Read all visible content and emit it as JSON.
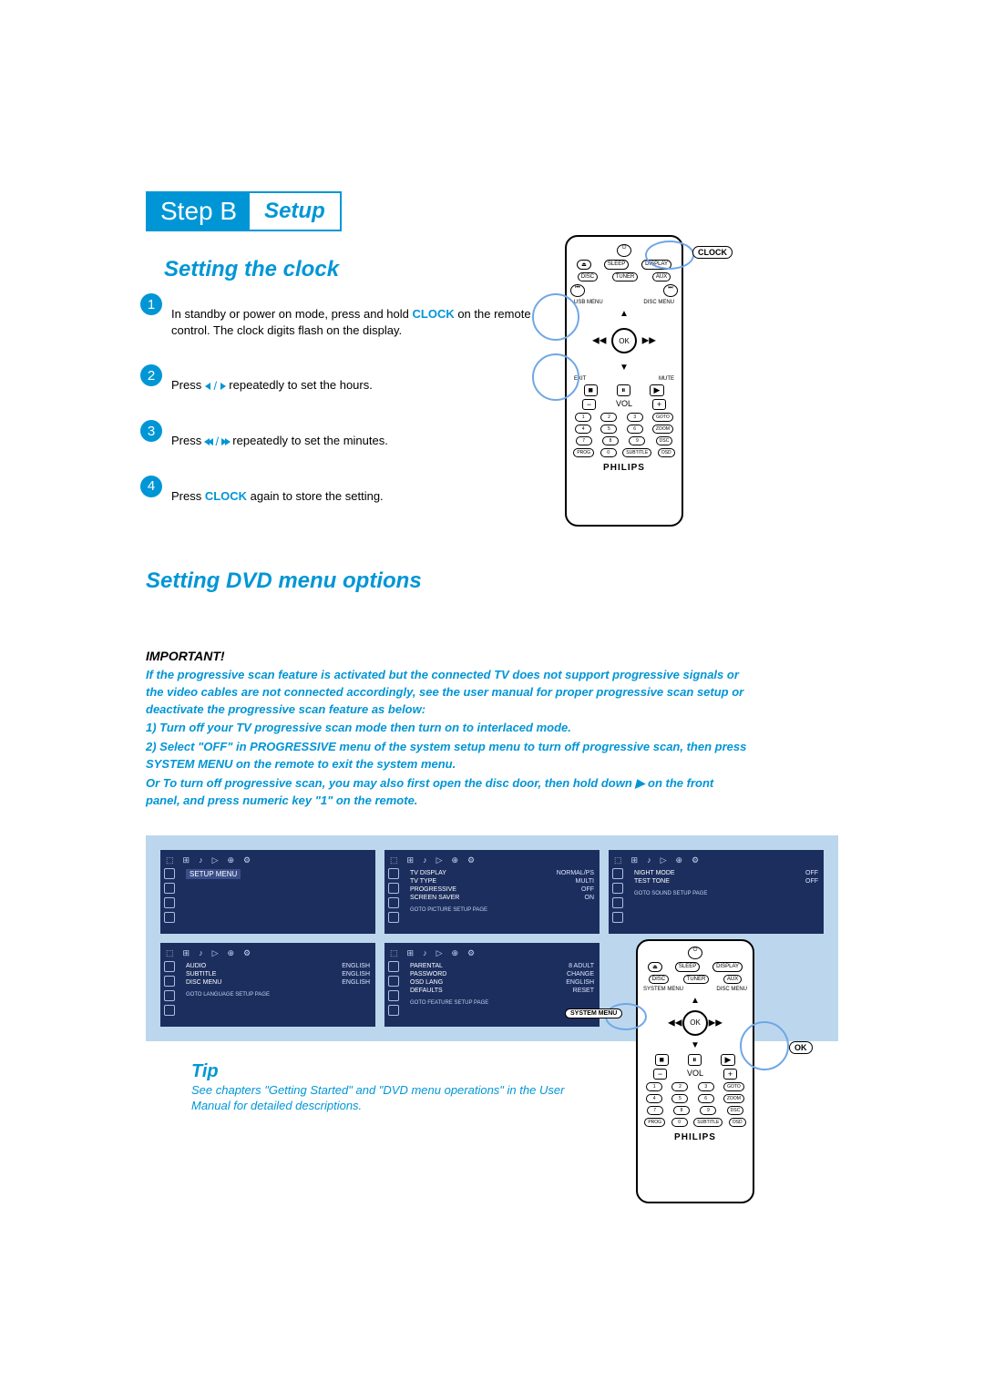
{
  "colors": {
    "accent": "#0095d6",
    "step_bg": "#0096d6",
    "circle_bg": "#0096d6",
    "panel_bg": "#bcd7ed",
    "menu_bg": "#1c2e5e",
    "text": "#000000"
  },
  "header": {
    "step_label": "Step B",
    "setup_label": "Setup"
  },
  "section1": {
    "title": "Setting the clock",
    "steps": [
      {
        "n": "1",
        "pre": "In standby or power on mode, press and hold ",
        "kw": "CLOCK",
        "post": " on the remote control. The clock digits flash on the display."
      },
      {
        "n": "2",
        "pre": "Press ",
        "icons": "lr",
        "post": " repeatedly to set the hours."
      },
      {
        "n": "3",
        "pre": "Press ",
        "icons": "llrr",
        "post": " repeatedly to set the minutes."
      },
      {
        "n": "4",
        "pre": "Press ",
        "kw": "CLOCK",
        "post": " again to store the setting."
      }
    ]
  },
  "section2": {
    "title": "Setting DVD menu options",
    "important_title": "IMPORTANT!",
    "important_lines": [
      "If the progressive scan feature is activated but the connected TV does not support progressive signals or the video cables are not connected accordingly, see the user manual for proper progressive scan setup or deactivate the progressive scan feature as below:",
      "1) Turn off your TV progressive scan mode then turn on to interlaced mode.",
      "2) Select \"OFF\" in PROGRESSIVE menu of the system setup menu to turn off progressive scan, then press SYSTEM MENU on the remote to exit the system menu.",
      "Or To turn off progressive scan, you may also first open the disc door, then hold down ▶ on the front panel, and press numeric key \"1\" on the remote."
    ]
  },
  "menus": [
    {
      "title": "SETUP MENU",
      "rows": [],
      "footer": ""
    },
    {
      "title": "",
      "rows": [
        [
          "TV DISPLAY",
          "NORMAL/PS"
        ],
        [
          "TV TYPE",
          "MULTI"
        ],
        [
          "PROGRESSIVE",
          "OFF"
        ],
        [
          "SCREEN SAVER",
          "ON"
        ]
      ],
      "footer": "GOTO PICTURE SETUP PAGE"
    },
    {
      "title": "",
      "rows": [
        [
          "NIGHT MODE",
          "OFF"
        ],
        [
          "TEST TONE",
          "OFF"
        ]
      ],
      "footer": "GOTO SOUND SETUP PAGE"
    },
    {
      "title": "",
      "rows": [
        [
          "AUDIO",
          "ENGLISH"
        ],
        [
          "SUBTITLE",
          "ENGLISH"
        ],
        [
          "DISC MENU",
          "ENGLISH"
        ]
      ],
      "footer": "GOTO LANGUAGE SETUP PAGE"
    },
    {
      "title": "",
      "rows": [
        [
          "PARENTAL",
          "8 ADULT"
        ],
        [
          "PASSWORD",
          "CHANGE"
        ],
        [
          "OSD LANG",
          "ENGLISH"
        ],
        [
          "DEFAULTS",
          "RESET"
        ]
      ],
      "footer": "GOTO FEATURE SETUP PAGE"
    }
  ],
  "tip": {
    "title": "Tip",
    "text": "See chapters \"Getting Started\" and \"DVD menu operations\" in the User Manual for detailed descriptions."
  },
  "remote": {
    "brand": "PHILIPS",
    "ok": "OK",
    "clock_label": "CLOCK",
    "system_menu_label": "SYSTEM MENU",
    "numrows": [
      [
        "1",
        "2",
        "3",
        "GOTO"
      ],
      [
        "4",
        "5",
        "6",
        "ZOOM"
      ],
      [
        "7",
        "8",
        "9",
        "DSC"
      ],
      [
        "PROG",
        "0",
        "SUBTITLE",
        "OSD"
      ]
    ],
    "labels_small": [
      "EJECT",
      "SLEEP",
      "DISPLAY",
      "DISC",
      "TUNER",
      "AUX",
      "USB MENU",
      "DISC MENU",
      "EXIT",
      "MUTE",
      "A-B",
      "SLOW",
      "CLOCK",
      "SURROUND"
    ]
  }
}
